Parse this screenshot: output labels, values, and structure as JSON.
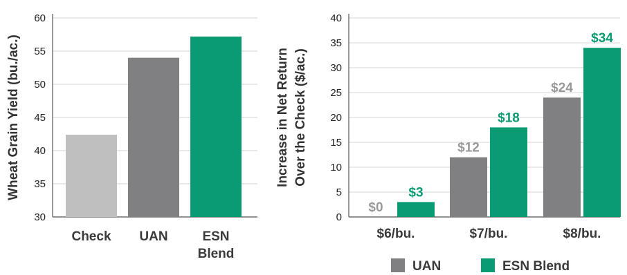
{
  "colors": {
    "check": "#bfbfbf",
    "uan": "#808083",
    "esn": "#0a9b73",
    "uan_label": "#999999",
    "esn_label": "#0a9b73"
  },
  "chart_data": [
    {
      "type": "bar",
      "title": "",
      "xlabel": "",
      "ylabel": "Wheat Grain Yield (bu./ac.)",
      "ylim": [
        30,
        60
      ],
      "yticks": [
        30,
        35,
        40,
        45,
        50,
        55,
        60
      ],
      "grid": true,
      "categories": [
        [
          "Check"
        ],
        [
          "UAN"
        ],
        [
          "ESN",
          "Blend"
        ]
      ],
      "values": [
        42.4,
        54.0,
        57.2
      ],
      "bar_colors": [
        "check",
        "uan",
        "esn"
      ]
    },
    {
      "type": "bar",
      "title": "",
      "xlabel": "",
      "ylabel": [
        "Increase in Net Return",
        "Over the Check ($/ac.)"
      ],
      "ylim": [
        0,
        40
      ],
      "yticks": [
        0,
        5,
        10,
        15,
        20,
        25,
        30,
        35,
        40
      ],
      "grid": true,
      "categories": [
        "$6/bu.",
        "$7/bu.",
        "$8/bu."
      ],
      "series": [
        {
          "name": "UAN",
          "values": [
            0,
            12,
            24
          ],
          "labels": [
            "$0",
            "$12",
            "$24"
          ],
          "color": "uan",
          "label_color": "uan_label"
        },
        {
          "name": "ESN Blend",
          "values": [
            3,
            18,
            34
          ],
          "labels": [
            "$3",
            "$18",
            "$34"
          ],
          "color": "esn",
          "label_color": "esn_label"
        }
      ],
      "legend": "bottom"
    }
  ]
}
